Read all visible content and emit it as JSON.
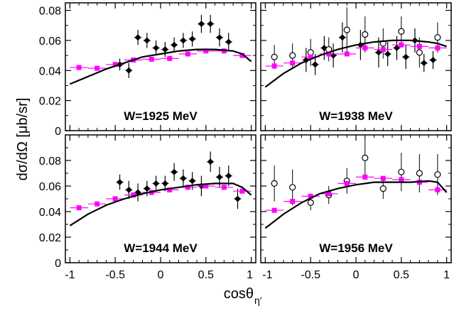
{
  "figure": {
    "ylabel": "dσ/dΩ [μb/sr]",
    "xlabel_main": "cosθ",
    "xlabel_sub": "η′",
    "colors": {
      "closed": "#000000",
      "open_fill": "#ffffff",
      "square": "#ff00ff",
      "curve": "#000000"
    }
  },
  "chart_data": [
    {
      "type": "scatter",
      "title": "W=1925 MeV",
      "xlim": [
        -1.05,
        1.05
      ],
      "ylim": [
        0,
        0.085
      ],
      "xticks": [
        "-1",
        "-0.5",
        "0",
        "0.5",
        "1"
      ],
      "yticks": [
        "0",
        "0.02",
        "0.04",
        "0.06",
        "0.08"
      ],
      "series": [
        {
          "marker": "closed-diamond",
          "points": [
            {
              "x": -0.45,
              "y": 0.044,
              "ey": 0.004
            },
            {
              "x": -0.35,
              "y": 0.04,
              "ey": 0.005
            },
            {
              "x": -0.25,
              "y": 0.062,
              "ey": 0.005
            },
            {
              "x": -0.15,
              "y": 0.06,
              "ey": 0.005
            },
            {
              "x": -0.05,
              "y": 0.055,
              "ey": 0.005
            },
            {
              "x": 0.05,
              "y": 0.054,
              "ey": 0.005
            },
            {
              "x": 0.15,
              "y": 0.057,
              "ey": 0.005
            },
            {
              "x": 0.25,
              "y": 0.06,
              "ey": 0.005
            },
            {
              "x": 0.35,
              "y": 0.061,
              "ey": 0.005
            },
            {
              "x": 0.45,
              "y": 0.071,
              "ey": 0.006
            },
            {
              "x": 0.55,
              "y": 0.071,
              "ey": 0.006
            },
            {
              "x": 0.65,
              "y": 0.062,
              "ey": 0.006
            },
            {
              "x": 0.75,
              "y": 0.059,
              "ey": 0.006
            }
          ]
        },
        {
          "marker": "magenta-square",
          "points": [
            {
              "x": -0.9,
              "y": 0.042,
              "ex": 0.1
            },
            {
              "x": -0.7,
              "y": 0.0415,
              "ex": 0.1
            },
            {
              "x": -0.5,
              "y": 0.044,
              "ex": 0.1
            },
            {
              "x": -0.3,
              "y": 0.047,
              "ex": 0.1
            },
            {
              "x": -0.1,
              "y": 0.0475,
              "ex": 0.1
            },
            {
              "x": 0.1,
              "y": 0.048,
              "ex": 0.1
            },
            {
              "x": 0.3,
              "y": 0.051,
              "ex": 0.1
            },
            {
              "x": 0.5,
              "y": 0.053,
              "ex": 0.1
            },
            {
              "x": 0.7,
              "y": 0.053,
              "ex": 0.1
            },
            {
              "x": 0.9,
              "y": 0.05,
              "ex": 0.1
            }
          ]
        },
        {
          "marker": "curve",
          "points": [
            {
              "x": -1.0,
              "y": 0.031
            },
            {
              "x": -0.8,
              "y": 0.036
            },
            {
              "x": -0.6,
              "y": 0.041
            },
            {
              "x": -0.4,
              "y": 0.045
            },
            {
              "x": -0.2,
              "y": 0.049
            },
            {
              "x": 0.0,
              "y": 0.051
            },
            {
              "x": 0.2,
              "y": 0.053
            },
            {
              "x": 0.4,
              "y": 0.054
            },
            {
              "x": 0.6,
              "y": 0.054
            },
            {
              "x": 0.8,
              "y": 0.053
            },
            {
              "x": 0.9,
              "y": 0.051
            },
            {
              "x": 1.0,
              "y": 0.046
            }
          ]
        }
      ]
    },
    {
      "type": "scatter",
      "title": "W=1938 MeV",
      "xlim": [
        -1.05,
        1.05
      ],
      "ylim": [
        0,
        0.085
      ],
      "xticks": [
        "-1",
        "-0.5",
        "0",
        "0.5",
        "1"
      ],
      "yticks": [],
      "series": [
        {
          "marker": "closed-diamond",
          "points": [
            {
              "x": -0.55,
              "y": 0.047,
              "ey": 0.008
            },
            {
              "x": -0.45,
              "y": 0.044,
              "ey": 0.007
            },
            {
              "x": -0.35,
              "y": 0.055,
              "ey": 0.008
            },
            {
              "x": -0.25,
              "y": 0.05,
              "ey": 0.008
            },
            {
              "x": -0.15,
              "y": 0.062,
              "ey": 0.01
            },
            {
              "x": 0.05,
              "y": 0.057,
              "ey": 0.01
            },
            {
              "x": 0.25,
              "y": 0.052,
              "ey": 0.01
            },
            {
              "x": 0.35,
              "y": 0.051,
              "ey": 0.008
            },
            {
              "x": 0.45,
              "y": 0.055,
              "ey": 0.008
            },
            {
              "x": 0.55,
              "y": 0.049,
              "ey": 0.008
            },
            {
              "x": 0.65,
              "y": 0.06,
              "ey": 0.008
            },
            {
              "x": 0.75,
              "y": 0.045,
              "ey": 0.006
            },
            {
              "x": 0.85,
              "y": 0.047,
              "ey": 0.006
            }
          ]
        },
        {
          "marker": "open-circle",
          "points": [
            {
              "x": -0.9,
              "y": 0.049,
              "ey": 0.008
            },
            {
              "x": -0.7,
              "y": 0.05,
              "ey": 0.008
            },
            {
              "x": -0.5,
              "y": 0.052,
              "ey": 0.009
            },
            {
              "x": -0.3,
              "y": 0.054,
              "ey": 0.008
            },
            {
              "x": -0.1,
              "y": 0.067,
              "ey": 0.015
            },
            {
              "x": 0.1,
              "y": 0.064,
              "ey": 0.012
            },
            {
              "x": 0.3,
              "y": 0.058,
              "ey": 0.01
            },
            {
              "x": 0.5,
              "y": 0.066,
              "ey": 0.01
            },
            {
              "x": 0.7,
              "y": 0.052,
              "ey": 0.01
            },
            {
              "x": 0.9,
              "y": 0.062,
              "ey": 0.01
            }
          ]
        },
        {
          "marker": "magenta-square",
          "points": [
            {
              "x": -0.9,
              "y": 0.043,
              "ex": 0.1
            },
            {
              "x": -0.7,
              "y": 0.045,
              "ex": 0.1
            },
            {
              "x": -0.5,
              "y": 0.049,
              "ex": 0.1
            },
            {
              "x": -0.3,
              "y": 0.051,
              "ex": 0.1
            },
            {
              "x": -0.1,
              "y": 0.051,
              "ex": 0.1
            },
            {
              "x": 0.1,
              "y": 0.055,
              "ex": 0.1
            },
            {
              "x": 0.3,
              "y": 0.054,
              "ex": 0.1
            },
            {
              "x": 0.5,
              "y": 0.057,
              "ex": 0.1
            },
            {
              "x": 0.7,
              "y": 0.056,
              "ex": 0.1
            },
            {
              "x": 0.9,
              "y": 0.055,
              "ex": 0.1
            }
          ]
        },
        {
          "marker": "curve",
          "points": [
            {
              "x": -1.0,
              "y": 0.029
            },
            {
              "x": -0.8,
              "y": 0.038
            },
            {
              "x": -0.6,
              "y": 0.045
            },
            {
              "x": -0.4,
              "y": 0.05
            },
            {
              "x": -0.2,
              "y": 0.054
            },
            {
              "x": 0.0,
              "y": 0.057
            },
            {
              "x": 0.2,
              "y": 0.059
            },
            {
              "x": 0.4,
              "y": 0.06
            },
            {
              "x": 0.6,
              "y": 0.06
            },
            {
              "x": 0.8,
              "y": 0.059
            },
            {
              "x": 0.9,
              "y": 0.058
            },
            {
              "x": 1.0,
              "y": 0.056
            }
          ]
        }
      ]
    },
    {
      "type": "scatter",
      "title": "W=1944 MeV",
      "xlim": [
        -1.05,
        1.05
      ],
      "ylim": [
        0,
        0.1
      ],
      "xticks": [
        "-1",
        "-0.5",
        "0",
        "0.5",
        "1"
      ],
      "yticks": [
        "0",
        "0.02",
        "0.04",
        "0.06",
        "0.08"
      ],
      "series": [
        {
          "marker": "closed-diamond",
          "points": [
            {
              "x": -0.45,
              "y": 0.063,
              "ey": 0.006
            },
            {
              "x": -0.35,
              "y": 0.057,
              "ey": 0.007
            },
            {
              "x": -0.25,
              "y": 0.055,
              "ey": 0.007
            },
            {
              "x": -0.15,
              "y": 0.058,
              "ey": 0.006
            },
            {
              "x": -0.05,
              "y": 0.062,
              "ey": 0.006
            },
            {
              "x": 0.05,
              "y": 0.062,
              "ey": 0.006
            },
            {
              "x": 0.15,
              "y": 0.071,
              "ey": 0.007
            },
            {
              "x": 0.25,
              "y": 0.066,
              "ey": 0.007
            },
            {
              "x": 0.35,
              "y": 0.064,
              "ey": 0.007
            },
            {
              "x": 0.45,
              "y": 0.06,
              "ey": 0.008
            },
            {
              "x": 0.55,
              "y": 0.079,
              "ey": 0.008
            },
            {
              "x": 0.65,
              "y": 0.067,
              "ey": 0.008
            },
            {
              "x": 0.75,
              "y": 0.068,
              "ey": 0.008
            },
            {
              "x": 0.85,
              "y": 0.05,
              "ey": 0.008
            }
          ]
        },
        {
          "marker": "magenta-square",
          "points": [
            {
              "x": -0.9,
              "y": 0.043,
              "ex": 0.1
            },
            {
              "x": -0.7,
              "y": 0.046,
              "ex": 0.1
            },
            {
              "x": -0.5,
              "y": 0.05,
              "ex": 0.1
            },
            {
              "x": -0.3,
              "y": 0.053,
              "ex": 0.1
            },
            {
              "x": -0.1,
              "y": 0.055,
              "ex": 0.1
            },
            {
              "x": 0.1,
              "y": 0.057,
              "ex": 0.1
            },
            {
              "x": 0.3,
              "y": 0.059,
              "ex": 0.1
            },
            {
              "x": 0.5,
              "y": 0.06,
              "ex": 0.1
            },
            {
              "x": 0.7,
              "y": 0.059,
              "ex": 0.1
            },
            {
              "x": 0.9,
              "y": 0.056,
              "ex": 0.1
            }
          ]
        },
        {
          "marker": "curve",
          "points": [
            {
              "x": -1.0,
              "y": 0.029
            },
            {
              "x": -0.8,
              "y": 0.038
            },
            {
              "x": -0.6,
              "y": 0.045
            },
            {
              "x": -0.4,
              "y": 0.05
            },
            {
              "x": -0.2,
              "y": 0.054
            },
            {
              "x": 0.0,
              "y": 0.057
            },
            {
              "x": 0.2,
              "y": 0.059
            },
            {
              "x": 0.4,
              "y": 0.061
            },
            {
              "x": 0.6,
              "y": 0.062
            },
            {
              "x": 0.8,
              "y": 0.062
            },
            {
              "x": 0.9,
              "y": 0.059
            },
            {
              "x": 1.0,
              "y": 0.053
            }
          ]
        }
      ]
    },
    {
      "type": "scatter",
      "title": "W=1956 MeV",
      "xlim": [
        -1.05,
        1.05
      ],
      "ylim": [
        0,
        0.1
      ],
      "xticks": [
        "-1",
        "-0.5",
        "0",
        "0.5",
        "1"
      ],
      "yticks": [],
      "series": [
        {
          "marker": "open-circle",
          "points": [
            {
              "x": -0.9,
              "y": 0.062,
              "ey": 0.014
            },
            {
              "x": -0.7,
              "y": 0.059,
              "ey": 0.014
            },
            {
              "x": -0.5,
              "y": 0.047,
              "ey": 0.006
            },
            {
              "x": -0.3,
              "y": 0.053,
              "ey": 0.007
            },
            {
              "x": -0.1,
              "y": 0.064,
              "ey": 0.01
            },
            {
              "x": 0.1,
              "y": 0.082,
              "ey": 0.017
            },
            {
              "x": 0.3,
              "y": 0.058,
              "ey": 0.008
            },
            {
              "x": 0.5,
              "y": 0.071,
              "ey": 0.015
            },
            {
              "x": 0.7,
              "y": 0.07,
              "ey": 0.015
            },
            {
              "x": 0.9,
              "y": 0.069,
              "ey": 0.016
            }
          ]
        },
        {
          "marker": "magenta-square",
          "points": [
            {
              "x": -0.9,
              "y": 0.041,
              "ex": 0.1
            },
            {
              "x": -0.7,
              "y": 0.048,
              "ex": 0.1
            },
            {
              "x": -0.5,
              "y": 0.052,
              "ex": 0.1
            },
            {
              "x": -0.3,
              "y": 0.054,
              "ex": 0.1
            },
            {
              "x": -0.1,
              "y": 0.062,
              "ex": 0.1
            },
            {
              "x": 0.1,
              "y": 0.067,
              "ex": 0.1
            },
            {
              "x": 0.3,
              "y": 0.066,
              "ex": 0.1
            },
            {
              "x": 0.5,
              "y": 0.065,
              "ex": 0.1
            },
            {
              "x": 0.7,
              "y": 0.063,
              "ex": 0.1
            },
            {
              "x": 0.9,
              "y": 0.057,
              "ex": 0.1
            }
          ]
        },
        {
          "marker": "curve",
          "points": [
            {
              "x": -1.0,
              "y": 0.027
            },
            {
              "x": -0.8,
              "y": 0.038
            },
            {
              "x": -0.6,
              "y": 0.047
            },
            {
              "x": -0.4,
              "y": 0.054
            },
            {
              "x": -0.2,
              "y": 0.058
            },
            {
              "x": 0.0,
              "y": 0.061
            },
            {
              "x": 0.2,
              "y": 0.063
            },
            {
              "x": 0.4,
              "y": 0.063
            },
            {
              "x": 0.6,
              "y": 0.063
            },
            {
              "x": 0.8,
              "y": 0.064
            },
            {
              "x": 0.9,
              "y": 0.063
            },
            {
              "x": 1.0,
              "y": 0.055
            }
          ]
        }
      ]
    }
  ]
}
